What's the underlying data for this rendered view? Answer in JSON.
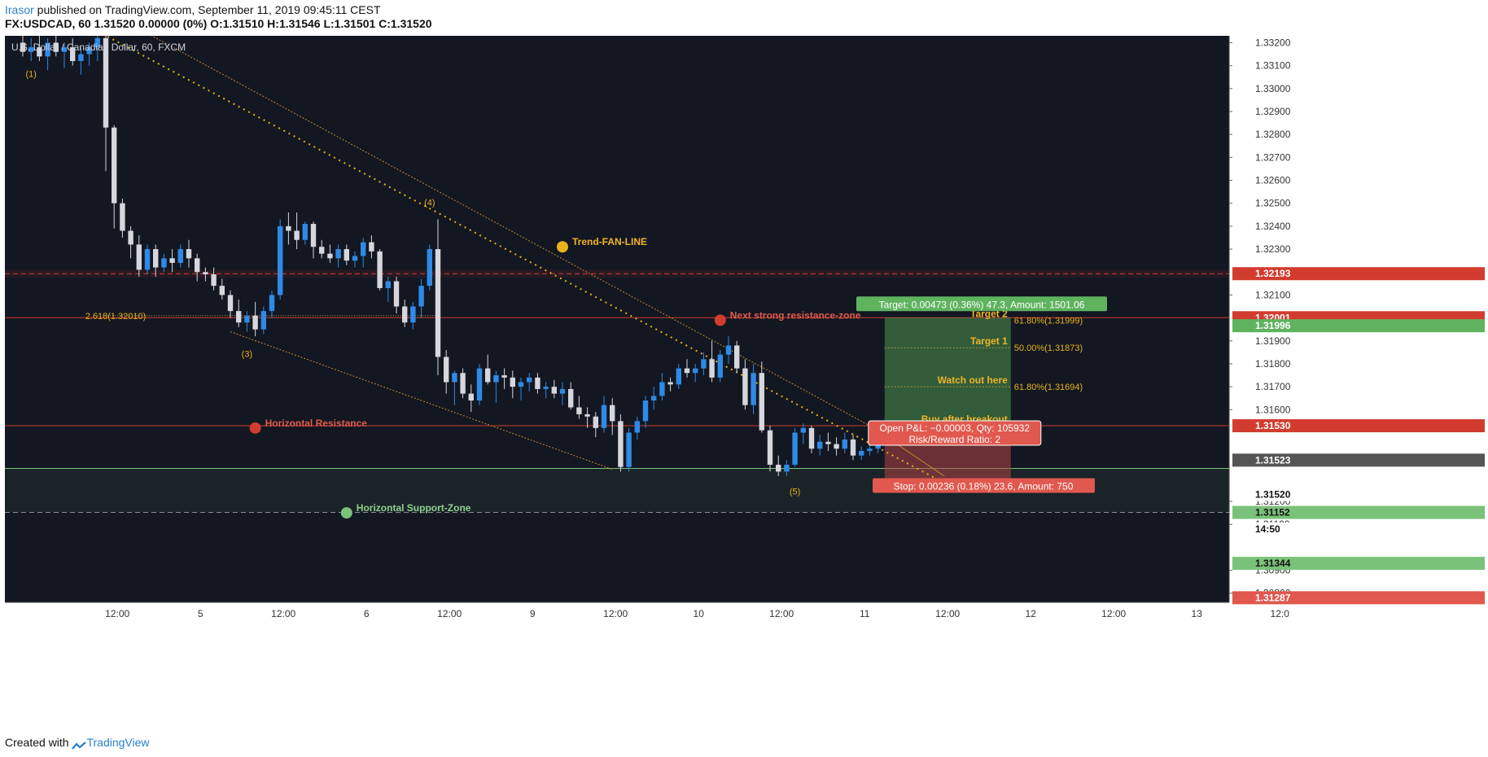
{
  "header": {
    "author": "Irasor",
    "published_text": " published on TradingView.com, September 11, 2019 09:45:11 CEST",
    "symbol_line": "FX:USDCAD, 60",
    "quote_line": " 1.31520 0.00000 (0%) O:1.31510 H:1.31546 L:1.31501 C:1.31520"
  },
  "footer": {
    "created_with": "Created with",
    "brand": "TradingView"
  },
  "chart_data": {
    "type": "candlestick",
    "title": "U.S. Dollar / Canadian Dollar, 60, FXCM",
    "ylim": [
      1.3076,
      1.3323
    ],
    "y_ticks": [
      "1.33200",
      "1.33100",
      "1.33000",
      "1.32900",
      "1.32800",
      "1.32700",
      "1.32600",
      "1.32500",
      "1.32400",
      "1.32300",
      "1.32100",
      "1.31900",
      "1.31800",
      "1.31700",
      "1.31600",
      "1.31200",
      "1.31100",
      "1.30900",
      "1.30800"
    ],
    "x_ticks": [
      {
        "label": "12:00",
        "i": 6
      },
      {
        "label": "5",
        "i": 16
      },
      {
        "label": "12:00",
        "i": 26
      },
      {
        "label": "6",
        "i": 36
      },
      {
        "label": "12:00",
        "i": 46
      },
      {
        "label": "9",
        "i": 56
      },
      {
        "label": "12:00",
        "i": 66
      },
      {
        "label": "10",
        "i": 76
      },
      {
        "label": "12:00",
        "i": 86
      },
      {
        "label": "11",
        "i": 96
      },
      {
        "label": "12:00",
        "i": 106
      },
      {
        "label": "12",
        "i": 116
      },
      {
        "label": "12:00",
        "i": 126
      },
      {
        "label": "13",
        "i": 136
      },
      {
        "label": "12:0",
        "i": 146
      }
    ],
    "price_labels": [
      {
        "text": "1.32193",
        "price": 1.32193,
        "bg": "#d23c2f",
        "fg": "#ffffff"
      },
      {
        "text": "1.32001",
        "price": 1.32001,
        "bg": "#d23c2f",
        "fg": "#ffffff"
      },
      {
        "text": "1.31996",
        "price": 1.31966,
        "bg": "#5fb35f",
        "fg": "#ffffff"
      },
      {
        "text": "1.31530",
        "price": 1.3153,
        "bg": "#d23c2f",
        "fg": "#ffffff"
      },
      {
        "text": "1.31523",
        "price": 1.3138,
        "bg": "#555555",
        "fg": "#ffffff"
      },
      {
        "text": "1.31520",
        "price": 1.3123,
        "bg": "#ffffff",
        "fg": "#111111"
      },
      {
        "text": "14:50",
        "price": 1.3108,
        "bg": "#ffffff",
        "fg": "#111111"
      },
      {
        "text": "1.31344",
        "price": 1.3093,
        "bg": "#7ac27a",
        "fg": "#111111"
      },
      {
        "text": "1.31287",
        "price": 1.3078,
        "bg": "#e0584e",
        "fg": "#ffffff"
      },
      {
        "text": "1.31152",
        "price": 1.31152,
        "bg": "#7ac27a",
        "fg": "#111111"
      }
    ],
    "candles": [
      [
        1.332,
        1.3325,
        1.3314,
        1.3316
      ],
      [
        1.3316,
        1.3322,
        1.3312,
        1.3318
      ],
      [
        1.3318,
        1.3324,
        1.3312,
        1.3314
      ],
      [
        1.3314,
        1.3322,
        1.3308,
        1.332
      ],
      [
        1.332,
        1.3326,
        1.3314,
        1.3316
      ],
      [
        1.3316,
        1.332,
        1.3309,
        1.3318
      ],
      [
        1.3318,
        1.3322,
        1.331,
        1.3312
      ],
      [
        1.3312,
        1.3318,
        1.3306,
        1.3315
      ],
      [
        1.3315,
        1.332,
        1.331,
        1.3318
      ],
      [
        1.3318,
        1.3328,
        1.3312,
        1.3322
      ],
      [
        1.3322,
        1.3325,
        1.3264,
        1.3283
      ],
      [
        1.3283,
        1.3284,
        1.3239,
        1.325
      ],
      [
        1.325,
        1.3252,
        1.3235,
        1.3238
      ],
      [
        1.3238,
        1.324,
        1.3226,
        1.3232
      ],
      [
        1.3232,
        1.3236,
        1.3218,
        1.3221
      ],
      [
        1.3221,
        1.3232,
        1.3219,
        1.323
      ],
      [
        1.323,
        1.3232,
        1.3218,
        1.3222
      ],
      [
        1.3222,
        1.3228,
        1.322,
        1.3226
      ],
      [
        1.3226,
        1.323,
        1.322,
        1.3224
      ],
      [
        1.3224,
        1.3232,
        1.3222,
        1.323
      ],
      [
        1.323,
        1.3234,
        1.3222,
        1.3226
      ],
      [
        1.3226,
        1.3228,
        1.3216,
        1.322
      ],
      [
        1.322,
        1.3222,
        1.3216,
        1.3219
      ],
      [
        1.3219,
        1.3222,
        1.3212,
        1.3214
      ],
      [
        1.3214,
        1.3217,
        1.3208,
        1.321
      ],
      [
        1.321,
        1.3212,
        1.32,
        1.3203
      ],
      [
        1.3203,
        1.3208,
        1.3196,
        1.3198
      ],
      [
        1.3198,
        1.3203,
        1.3194,
        1.3201
      ],
      [
        1.3201,
        1.3207,
        1.3192,
        1.3195
      ],
      [
        1.3195,
        1.3205,
        1.3193,
        1.3203
      ],
      [
        1.3203,
        1.3212,
        1.32,
        1.321
      ],
      [
        1.321,
        1.3243,
        1.3208,
        1.324
      ],
      [
        1.324,
        1.3246,
        1.3232,
        1.3238
      ],
      [
        1.3238,
        1.3246,
        1.323,
        1.3234
      ],
      [
        1.3234,
        1.3242,
        1.3232,
        1.3241
      ],
      [
        1.3241,
        1.3242,
        1.3226,
        1.3231
      ],
      [
        1.3231,
        1.3234,
        1.3226,
        1.3228
      ],
      [
        1.3228,
        1.3232,
        1.3224,
        1.3226
      ],
      [
        1.3226,
        1.3232,
        1.3222,
        1.323
      ],
      [
        1.323,
        1.3232,
        1.3223,
        1.3225
      ],
      [
        1.3225,
        1.3229,
        1.3222,
        1.3227
      ],
      [
        1.3227,
        1.3235,
        1.3222,
        1.3233
      ],
      [
        1.3233,
        1.3236,
        1.3226,
        1.3229
      ],
      [
        1.3229,
        1.323,
        1.3212,
        1.3213
      ],
      [
        1.3213,
        1.3218,
        1.3207,
        1.3216
      ],
      [
        1.3216,
        1.3218,
        1.3202,
        1.3205
      ],
      [
        1.3205,
        1.3208,
        1.3196,
        1.3198
      ],
      [
        1.3198,
        1.3207,
        1.3195,
        1.3205
      ],
      [
        1.3205,
        1.3217,
        1.32,
        1.3214
      ],
      [
        1.3214,
        1.3232,
        1.3212,
        1.323
      ],
      [
        1.323,
        1.3243,
        1.3175,
        1.3183
      ],
      [
        1.3183,
        1.3186,
        1.3167,
        1.3172
      ],
      [
        1.3172,
        1.3177,
        1.3162,
        1.3176
      ],
      [
        1.3176,
        1.3178,
        1.3165,
        1.3167
      ],
      [
        1.3167,
        1.3171,
        1.3159,
        1.3164
      ],
      [
        1.3164,
        1.318,
        1.3162,
        1.3178
      ],
      [
        1.3178,
        1.3184,
        1.3171,
        1.3172
      ],
      [
        1.3172,
        1.3177,
        1.3163,
        1.3175
      ],
      [
        1.3175,
        1.3178,
        1.3169,
        1.3174
      ],
      [
        1.3174,
        1.3177,
        1.3165,
        1.317
      ],
      [
        1.317,
        1.3174,
        1.3164,
        1.3172
      ],
      [
        1.3172,
        1.3176,
        1.3168,
        1.3174
      ],
      [
        1.3174,
        1.3176,
        1.3167,
        1.3169
      ],
      [
        1.3169,
        1.3172,
        1.3165,
        1.317
      ],
      [
        1.317,
        1.3173,
        1.3165,
        1.3167
      ],
      [
        1.3167,
        1.3172,
        1.3162,
        1.3169
      ],
      [
        1.3169,
        1.3172,
        1.316,
        1.3161
      ],
      [
        1.3161,
        1.3166,
        1.3156,
        1.3158
      ],
      [
        1.3158,
        1.3161,
        1.3152,
        1.3157
      ],
      [
        1.3157,
        1.3159,
        1.3148,
        1.3152
      ],
      [
        1.3152,
        1.3166,
        1.315,
        1.3162
      ],
      [
        1.3162,
        1.3165,
        1.3149,
        1.3155
      ],
      [
        1.3155,
        1.3158,
        1.3133,
        1.3135
      ],
      [
        1.3135,
        1.3152,
        1.3133,
        1.315
      ],
      [
        1.315,
        1.3157,
        1.3147,
        1.3155
      ],
      [
        1.3155,
        1.3166,
        1.3152,
        1.3164
      ],
      [
        1.3164,
        1.317,
        1.316,
        1.3166
      ],
      [
        1.3166,
        1.3176,
        1.3164,
        1.3172
      ],
      [
        1.3172,
        1.3174,
        1.3168,
        1.3171
      ],
      [
        1.3171,
        1.318,
        1.3169,
        1.3178
      ],
      [
        1.3178,
        1.3182,
        1.3174,
        1.3176
      ],
      [
        1.3176,
        1.318,
        1.3172,
        1.3178
      ],
      [
        1.3178,
        1.3185,
        1.3175,
        1.3182
      ],
      [
        1.3182,
        1.319,
        1.3172,
        1.3174
      ],
      [
        1.3174,
        1.3186,
        1.3172,
        1.3184
      ],
      [
        1.3184,
        1.3192,
        1.318,
        1.3188
      ],
      [
        1.3188,
        1.319,
        1.3176,
        1.3178
      ],
      [
        1.3178,
        1.3182,
        1.316,
        1.3162
      ],
      [
        1.3162,
        1.318,
        1.3158,
        1.3176
      ],
      [
        1.3176,
        1.3181,
        1.315,
        1.3151
      ],
      [
        1.3151,
        1.3153,
        1.3133,
        1.3136
      ],
      [
        1.3136,
        1.314,
        1.3131,
        1.3133
      ],
      [
        1.3133,
        1.3138,
        1.3131,
        1.3136
      ],
      [
        1.3136,
        1.3152,
        1.3135,
        1.315
      ],
      [
        1.315,
        1.3154,
        1.3145,
        1.3152
      ],
      [
        1.3152,
        1.3153,
        1.3141,
        1.3143
      ],
      [
        1.3143,
        1.3149,
        1.314,
        1.3146
      ],
      [
        1.3146,
        1.315,
        1.3142,
        1.3145
      ],
      [
        1.3145,
        1.3148,
        1.314,
        1.3143
      ],
      [
        1.3143,
        1.315,
        1.3141,
        1.3147
      ],
      [
        1.3147,
        1.3149,
        1.3138,
        1.314
      ],
      [
        1.314,
        1.3144,
        1.3138,
        1.3142
      ],
      [
        1.3142,
        1.3145,
        1.314,
        1.3143
      ],
      [
        1.3143,
        1.3153,
        1.3141,
        1.315
      ],
      [
        1.315,
        1.3155,
        1.3148,
        1.3152
      ]
    ],
    "annotations": {
      "wave_labels": [
        {
          "text": "(1)",
          "i": 1,
          "price": 1.3305
        },
        {
          "text": "(3)",
          "i": 27,
          "price": 1.3183
        },
        {
          "text": "(4)",
          "i": 49,
          "price": 1.3249
        },
        {
          "text": "(5)",
          "i": 93,
          "price": 1.3123
        }
      ],
      "fib_label": {
        "text": "2.618(1.32010)",
        "i": 10,
        "price": 1.3201
      },
      "markers": [
        {
          "text": "Trend-FAN-LINE",
          "i": 65,
          "price": 1.3231,
          "color": "#e8b21a",
          "text_color": "#f0b429"
        },
        {
          "text": "Next strong resistance-zone",
          "i": 84,
          "price": 1.3199,
          "color": "#d23c2f",
          "text_color": "#e05a4a"
        },
        {
          "text": "Horizontal Resistance",
          "i": 28,
          "price": 1.3152,
          "color": "#d23c2f",
          "text_color": "#e05a4a"
        },
        {
          "text": "Horizontal Support-Zone",
          "i": 39,
          "price": 1.3115,
          "color": "#7ac27a",
          "text_color": "#8fd18f"
        }
      ],
      "position": {
        "target_label": "Target: 0.00473 (0.36%) 47.3, Amount: 1501.06",
        "stop_label": "Stop: 0.00236 (0.18%) 23.6, Amount: 750",
        "pnl_label": "Open P&L: −0.00003, Qty: 105932",
        "rr_label": "Risk/Reward Ratio: 2",
        "target_levels": [
          {
            "name": "Target 2",
            "fib": "61.80%(1.31999)",
            "price": 1.3199
          },
          {
            "name": "Target 1",
            "fib": "50.00%(1.31873)",
            "price": 1.3187
          },
          {
            "name": "Watch out here",
            "fib": "61.80%(1.31694)",
            "price": 1.317
          },
          {
            "name": "Buy after breakout",
            "fib": "",
            "price": 1.3153
          }
        ]
      }
    }
  }
}
